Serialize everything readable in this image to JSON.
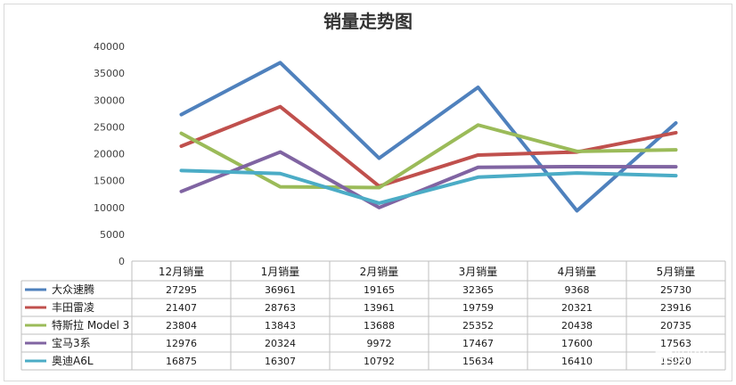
{
  "chart_data": {
    "type": "line",
    "title": "销量走势图",
    "categories": [
      "12月销量",
      "1月销量",
      "2月销量",
      "3月销量",
      "4月销量",
      "5月销量"
    ],
    "ylim": [
      0,
      40000
    ],
    "yticks": [
      0,
      5000,
      10000,
      15000,
      20000,
      25000,
      30000,
      35000,
      40000
    ],
    "grid": false,
    "legend": "table-left",
    "series": [
      {
        "name": "大众速腾",
        "color": "#4f81bd",
        "values": [
          27295,
          36961,
          19165,
          32365,
          9368,
          25730
        ],
        "table": [
          "27295",
          "36961",
          "19165",
          "32365",
          "9368",
          "25730"
        ]
      },
      {
        "name": "丰田雷凌",
        "color": "#c0504d",
        "values": [
          21407,
          28763,
          13961,
          19759,
          20321,
          23916
        ],
        "table": [
          "21407",
          "28763",
          "13961",
          "19759",
          "20321",
          "23916"
        ]
      },
      {
        "name": "特斯拉 Model 3",
        "color": "#9bbb59",
        "values": [
          23804,
          13843,
          13688,
          25352,
          20438,
          20735
        ],
        "table": [
          "23804",
          "13843",
          "13688",
          "25352",
          "20438",
          "20735"
        ]
      },
      {
        "name": "宝马3系",
        "color": "#8064a2",
        "values": [
          12976,
          20324,
          9972,
          17467,
          17600,
          17563
        ],
        "table": [
          "12976",
          "20324",
          "9972",
          "17467",
          "17600",
          "17563"
        ]
      },
      {
        "name": "奥迪A6L",
        "color": "#4bacc6",
        "values": [
          16875,
          16307,
          10792,
          15634,
          16410,
          15920
        ],
        "table": [
          "16875",
          "16307",
          "10792",
          "15634",
          "16410",
          "15920"
        ]
      }
    ]
  },
  "watermark": "车咧叭"
}
